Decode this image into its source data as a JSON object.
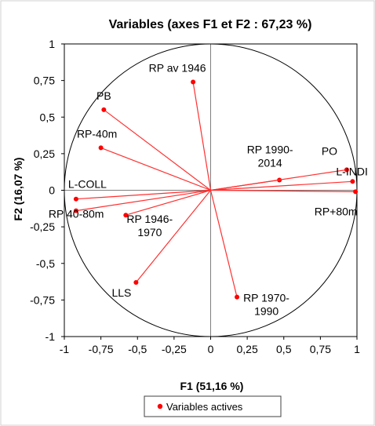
{
  "chart_data": {
    "type": "scatter",
    "title": "Variables (axes F1 et F2 : 67,23 %)",
    "xlabel": "F1 (51,16 %)",
    "ylabel": "F2 (16,07 %)",
    "xlim": [
      -1,
      1
    ],
    "ylim": [
      -1,
      1
    ],
    "xticks": [
      "-1",
      "-0,75",
      "-0,5",
      "-0,25",
      "0",
      "0,25",
      "0,5",
      "0,75",
      "1"
    ],
    "yticks": [
      "-1",
      "-0,75",
      "-0,5",
      "-0,25",
      "0",
      "0,25",
      "0,5",
      "0,75",
      "1"
    ],
    "correlation_circle": true,
    "grid": false,
    "legend_position": "bottom",
    "colors": {
      "points": "#ff0000",
      "vectors": "#ff3030",
      "axes": "#808080",
      "circle": "#000000"
    },
    "series": [
      {
        "name": "Variables actives",
        "points": [
          {
            "label": "RP av 1946",
            "x": -0.12,
            "y": 0.74
          },
          {
            "label": "PB",
            "x": -0.73,
            "y": 0.55
          },
          {
            "label": "RP-40m",
            "x": -0.75,
            "y": 0.29
          },
          {
            "label": "L-COLL",
            "x": -0.92,
            "y": -0.06
          },
          {
            "label": "RP 40-80m",
            "x": -0.92,
            "y": -0.14
          },
          {
            "label": "RP 1946-1970",
            "x": -0.58,
            "y": -0.17
          },
          {
            "label": "LLS",
            "x": -0.51,
            "y": -0.63
          },
          {
            "label": "RP 1970-1990",
            "x": 0.18,
            "y": -0.73
          },
          {
            "label": "RP 1990-2014",
            "x": 0.47,
            "y": 0.07
          },
          {
            "label": "PO",
            "x": 0.93,
            "y": 0.14
          },
          {
            "label": "L-INDI",
            "x": 0.97,
            "y": 0.06
          },
          {
            "label": "RP+80m",
            "x": 0.99,
            "y": -0.01
          }
        ]
      }
    ]
  }
}
